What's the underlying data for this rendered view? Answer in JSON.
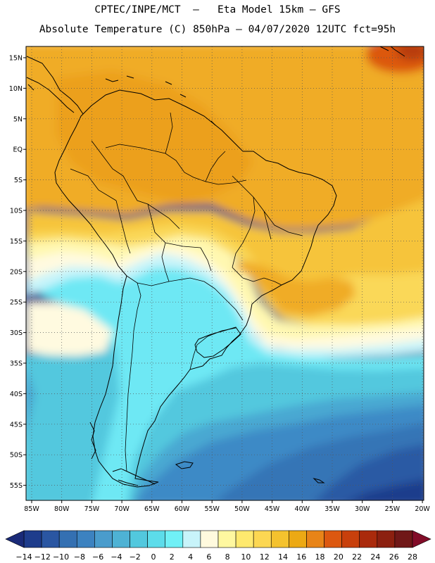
{
  "header": {
    "line1": "CPTEC/INPE/MCT  –   Eta Model 15km – GFS",
    "line2": "Absolute Temperature (C) 850hPa – 04/07/2020 12UTC fct=95h"
  },
  "axes": {
    "lat_labels": [
      "15N",
      "10N",
      "5N",
      "EQ",
      "5S",
      "10S",
      "15S",
      "20S",
      "25S",
      "30S",
      "35S",
      "40S",
      "45S",
      "50S",
      "55S"
    ],
    "lon_labels": [
      "85W",
      "80W",
      "75W",
      "70W",
      "65W",
      "60W",
      "55W",
      "50W",
      "45W",
      "40W",
      "35W",
      "30W",
      "25W",
      "20W"
    ]
  },
  "colorbar": {
    "labels": [
      "-14",
      "-12",
      "-10",
      "-8",
      "-6",
      "-4",
      "-2",
      "0",
      "2",
      "4",
      "6",
      "8",
      "10",
      "12",
      "14",
      "16",
      "18",
      "20",
      "22",
      "24",
      "26",
      "28"
    ],
    "colors": [
      "#1e3c8c",
      "#2a56a2",
      "#3470b2",
      "#3c82c0",
      "#4a9ccc",
      "#4eb2d4",
      "#52c8de",
      "#5cdcea",
      "#70f0f6",
      "#c8f4fa",
      "#fffade",
      "#fff8a0",
      "#ffe96e",
      "#fcd752",
      "#f4c22e",
      "#eca914",
      "#e88418",
      "#dc5810",
      "#c8400c",
      "#aa2a0c",
      "#8c2010",
      "#701818"
    ],
    "under_color": "#1a2a78",
    "over_color": "#820c28"
  },
  "map_colors": {
    "orange_deep": "#eca01c",
    "orange": "#f0ac28",
    "orange_light": "#f6c43a",
    "yellow": "#fad858",
    "pale_yellow": "#fff8b0",
    "cream": "#fffae0",
    "light_cyan": "#c8f4fa",
    "cyan": "#6ee8f4",
    "sky": "#52c8de",
    "light_blue": "#4aa8d2",
    "mid_blue": "#3c8ac6",
    "blue": "#3474b6",
    "dark_blue": "#2a5aa4",
    "navy": "#1e3c8c",
    "hot": "#dc5810",
    "hotter": "#b83c0e",
    "outline": "#000000"
  }
}
